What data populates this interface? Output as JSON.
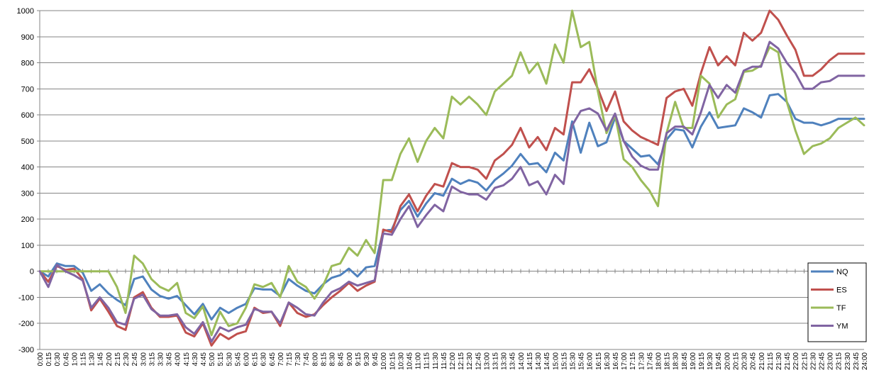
{
  "chart_data": {
    "type": "line",
    "title": "",
    "xlabel": "",
    "ylabel": "",
    "ylim": [
      -300,
      1000
    ],
    "yticks": [
      1000,
      900,
      800,
      700,
      600,
      500,
      400,
      300,
      200,
      100,
      0,
      -100,
      -200,
      -300
    ],
    "grid": true,
    "legend_position": "right",
    "x": [
      "0:00",
      "0:15",
      "0:30",
      "0:45",
      "1:00",
      "1:15",
      "1:30",
      "1:45",
      "2:00",
      "2:15",
      "2:30",
      "2:45",
      "3:00",
      "3:15",
      "3:30",
      "3:45",
      "4:00",
      "4:15",
      "4:30",
      "4:45",
      "5:00",
      "5:15",
      "5:30",
      "5:45",
      "6:00",
      "6:15",
      "6:30",
      "6:45",
      "7:00",
      "7:15",
      "7:30",
      "7:45",
      "8:00",
      "8:15",
      "8:30",
      "8:45",
      "9:00",
      "9:15",
      "9:30",
      "9:45",
      "10:00",
      "10:15",
      "10:30",
      "10:45",
      "11:00",
      "11:15",
      "11:30",
      "11:45",
      "12:00",
      "12:15",
      "12:30",
      "12:45",
      "13:00",
      "13:15",
      "13:30",
      "13:45",
      "14:00",
      "14:15",
      "14:30",
      "14:45",
      "15:00",
      "15:15",
      "15:30",
      "15:45",
      "16:00",
      "16:15",
      "16:30",
      "16:45",
      "17:00",
      "17:15",
      "17:30",
      "17:45",
      "18:00",
      "18:15",
      "18:30",
      "18:45",
      "19:00",
      "19:15",
      "19:30",
      "19:45",
      "20:00",
      "20:15",
      "20:30",
      "20:45",
      "21:00",
      "21:15",
      "21:30",
      "21:45",
      "22:00",
      "22:15",
      "22:30",
      "22:45",
      "23:00",
      "23:15",
      "23:30",
      "23:45",
      "24:00"
    ],
    "x_tick_labels": [
      "0:00",
      "0:15",
      "0:30",
      "0:45",
      "1:00",
      "1:15",
      "1:30",
      "1:45",
      "2:00",
      "2:15",
      "2:30",
      "2:45",
      "3:00",
      "3:15",
      "3:30",
      "3:45",
      "4:00",
      "4:15",
      "4:30",
      "4:45",
      "5:00",
      "5:15",
      "5:30",
      "5:45",
      "6:00",
      "6:15",
      "6:30",
      "6:45",
      "7:00",
      "7:15",
      "7:30",
      "7:45",
      "8:00",
      "8:15",
      "8:30",
      "8:45",
      "9:00",
      "9:15",
      "9:30",
      "9:45",
      "10:00",
      "10:15",
      "10:30",
      "10:45",
      "11:00",
      "11:15",
      "11:30",
      "11:45",
      "12:00",
      "12:15",
      "12:30",
      "12:45",
      "13:00",
      "13:15",
      "13:30",
      "13:45",
      "14:00",
      "14:15",
      "14:30",
      "14:45",
      "15:00",
      "15:15",
      "15:30",
      "15:45",
      "16:00",
      "16:15",
      "16:30",
      "16:45",
      "17:00",
      "17:15",
      "17:30",
      "17:45",
      "18:00",
      "18:15",
      "18:30",
      "18:45",
      "19:00",
      "19:15",
      "19:30",
      "19:45",
      "20:00",
      "20:15",
      "20:30",
      "20:45",
      "21:00",
      "21:15",
      "21:30",
      "21:45",
      "22:00",
      "22:15",
      "22:30",
      "22:45",
      "23:00",
      "23:15",
      "23:30",
      "23:45",
      "24:00"
    ],
    "series": [
      {
        "name": "NQ",
        "color": "#4f81bd",
        "values": [
          0,
          -20,
          30,
          20,
          20,
          -5,
          -75,
          -50,
          -85,
          -110,
          -130,
          -30,
          -20,
          -70,
          -95,
          -105,
          -95,
          -130,
          -165,
          -125,
          -185,
          -140,
          -160,
          -140,
          -125,
          -65,
          -70,
          -70,
          -95,
          -30,
          -55,
          -75,
          -85,
          -50,
          -25,
          -15,
          10,
          -20,
          15,
          20,
          155,
          160,
          235,
          270,
          210,
          260,
          300,
          290,
          355,
          335,
          350,
          340,
          310,
          350,
          375,
          405,
          450,
          410,
          415,
          380,
          455,
          425,
          575,
          455,
          570,
          480,
          495,
          590,
          500,
          470,
          440,
          445,
          410,
          505,
          545,
          540,
          475,
          555,
          610,
          550,
          555,
          560,
          625,
          610,
          590,
          675,
          680,
          650,
          585,
          570,
          570,
          560,
          570,
          585,
          585,
          585,
          585
        ]
      },
      {
        "name": "ES",
        "color": "#c0504d",
        "values": [
          0,
          -40,
          20,
          5,
          10,
          -30,
          -150,
          -105,
          -155,
          -210,
          -225,
          -100,
          -80,
          -140,
          -175,
          -175,
          -170,
          -235,
          -250,
          -200,
          -285,
          -240,
          -260,
          -240,
          -230,
          -140,
          -160,
          -155,
          -210,
          -120,
          -160,
          -175,
          -165,
          -130,
          -100,
          -75,
          -45,
          -75,
          -55,
          -40,
          160,
          150,
          250,
          295,
          230,
          290,
          335,
          325,
          415,
          400,
          400,
          390,
          355,
          425,
          450,
          485,
          550,
          475,
          515,
          465,
          550,
          525,
          725,
          725,
          775,
          700,
          615,
          690,
          575,
          540,
          515,
          500,
          485,
          665,
          690,
          700,
          635,
          760,
          860,
          790,
          825,
          790,
          915,
          885,
          915,
          1000,
          965,
          905,
          850,
          750,
          750,
          775,
          810,
          835,
          835,
          835,
          835
        ]
      },
      {
        "name": "TF",
        "color": "#9bbb59",
        "values": [
          0,
          0,
          0,
          0,
          0,
          0,
          0,
          0,
          0,
          -60,
          -160,
          60,
          30,
          -30,
          -60,
          -75,
          -45,
          -160,
          -180,
          -135,
          -245,
          -155,
          -210,
          -200,
          -140,
          -50,
          -60,
          -45,
          -100,
          20,
          -40,
          -60,
          -105,
          -55,
          20,
          30,
          90,
          60,
          120,
          70,
          350,
          350,
          450,
          510,
          420,
          500,
          550,
          510,
          670,
          640,
          670,
          640,
          600,
          690,
          720,
          750,
          840,
          760,
          800,
          720,
          870,
          800,
          1000,
          860,
          880,
          690,
          530,
          600,
          430,
          400,
          350,
          310,
          250,
          530,
          650,
          550,
          550,
          750,
          720,
          590,
          640,
          660,
          765,
          770,
          790,
          860,
          840,
          650,
          540,
          450,
          480,
          490,
          510,
          550,
          570,
          590,
          560
        ]
      },
      {
        "name": "YM",
        "color": "#8064a2",
        "values": [
          0,
          -60,
          25,
          0,
          -15,
          -35,
          -140,
          -100,
          -140,
          -195,
          -205,
          -105,
          -90,
          -145,
          -170,
          -170,
          -165,
          -215,
          -240,
          -195,
          -270,
          -215,
          -230,
          -215,
          -205,
          -145,
          -155,
          -155,
          -200,
          -120,
          -140,
          -165,
          -170,
          -120,
          -80,
          -65,
          -40,
          -55,
          -45,
          -35,
          145,
          140,
          200,
          250,
          170,
          215,
          255,
          230,
          325,
          305,
          295,
          295,
          275,
          320,
          330,
          355,
          400,
          330,
          345,
          295,
          370,
          335,
          560,
          615,
          625,
          605,
          540,
          605,
          500,
          440,
          405,
          390,
          390,
          530,
          555,
          555,
          525,
          610,
          715,
          665,
          715,
          685,
          770,
          785,
          785,
          880,
          855,
          800,
          760,
          700,
          700,
          725,
          730,
          750,
          750,
          750,
          750
        ]
      }
    ]
  }
}
